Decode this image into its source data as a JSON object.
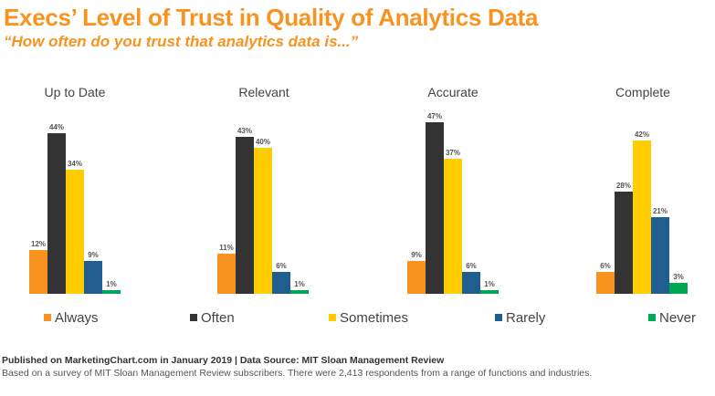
{
  "title": "Execs’ Level of Trust in Quality of Analytics Data",
  "subtitle": "“How often do you trust that analytics data is...”",
  "chart_data": {
    "type": "bar",
    "groups": [
      "Up to Date",
      "Relevant",
      "Accurate",
      "Complete"
    ],
    "series": [
      {
        "name": "Always",
        "color": "#f7931e",
        "values": [
          12,
          11,
          9,
          6
        ]
      },
      {
        "name": "Often",
        "color": "#333333",
        "values": [
          44,
          43,
          47,
          28
        ]
      },
      {
        "name": "Sometimes",
        "color": "#ffcc00",
        "values": [
          34,
          40,
          37,
          42
        ]
      },
      {
        "name": "Rarely",
        "color": "#1f5e8e",
        "values": [
          9,
          6,
          6,
          21
        ]
      },
      {
        "name": "Never",
        "color": "#00a651",
        "values": [
          1,
          1,
          1,
          3
        ]
      }
    ],
    "value_suffix": "%",
    "ylim": [
      0,
      50
    ],
    "grid": false,
    "legend_position": "bottom"
  },
  "footer": {
    "source": "Published on MarketingChart.com in January 2019 | Data Source: MIT Sloan Management Review",
    "note": "Based on a survey of MIT Sloan Management Review subscribers. There were 2,413 respondents from a range of functions and industries."
  }
}
